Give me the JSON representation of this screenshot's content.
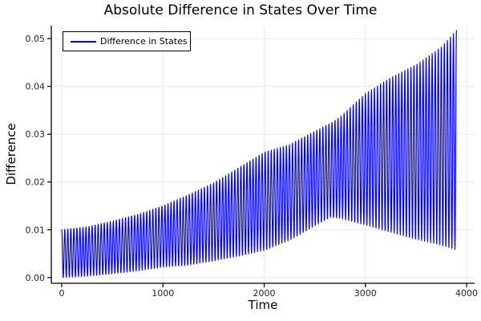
{
  "title": "Absolute Difference in States Over Time",
  "axes": {
    "xlabel": "Time",
    "ylabel": "Difference"
  },
  "legend": {
    "label": "Difference in States"
  },
  "colors": {
    "line": "#0000FF",
    "grid": "#E8E8E8",
    "spine": "#000000",
    "tick_label": "#262626",
    "background": "#FFFFFF"
  },
  "chart_data": {
    "type": "line",
    "title": "Absolute Difference in States Over Time",
    "xlabel": "Time",
    "ylabel": "Difference",
    "legend_position": "top-left",
    "grid": true,
    "xlim": [
      -103,
      4079
    ],
    "ylim": [
      -0.0012,
      0.0527
    ],
    "xticks": [
      0,
      1000,
      2000,
      3000,
      4000
    ],
    "xtick_labels": [
      "0",
      "1000",
      "2000",
      "3000",
      "4000"
    ],
    "yticks": [
      0.0,
      0.01,
      0.02,
      0.03,
      0.04,
      0.05
    ],
    "ytick_labels": [
      "0.00",
      "0.01",
      "0.02",
      "0.03",
      "0.04",
      "0.05"
    ],
    "series": [
      {
        "name": "Difference in States",
        "color": "#0000FF",
        "waveform": "cosine oscillation between lower and upper envelopes, starting at upper envelope at t=0",
        "oscillation_period": 30,
        "t_start": 0,
        "t_end": 3900,
        "envelope_t": [
          0,
          250,
          500,
          750,
          1000,
          1250,
          1500,
          1750,
          2000,
          2250,
          2500,
          2650,
          2750,
          3000,
          3250,
          3500,
          3750,
          3900
        ],
        "envelope_upper": [
          0.01,
          0.0106,
          0.0118,
          0.0132,
          0.015,
          0.0173,
          0.0198,
          0.023,
          0.0262,
          0.0278,
          0.0306,
          0.0322,
          0.0336,
          0.0385,
          0.0418,
          0.0445,
          0.0482,
          0.0517
        ],
        "envelope_lower": [
          0.0,
          0.0003,
          0.0008,
          0.0014,
          0.0022,
          0.0026,
          0.0035,
          0.0045,
          0.0057,
          0.0078,
          0.0108,
          0.0126,
          0.0124,
          0.011,
          0.0095,
          0.008,
          0.0068,
          0.0058
        ]
      }
    ]
  }
}
